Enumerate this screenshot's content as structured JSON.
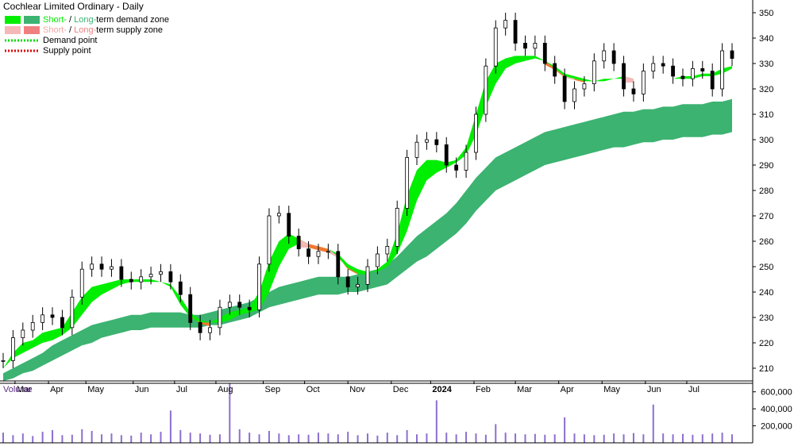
{
  "chart_data": {
    "type": "candlestick",
    "title": "Cochlear Limited Ordinary - Daily",
    "legend": {
      "placement": "top-left",
      "entries": [
        {
          "kind": "zone",
          "parts": [
            {
              "text": "Short-",
              "color": "#00ee00"
            },
            {
              "text": " / ",
              "color": "#000000"
            },
            {
              "text": "Long-",
              "color": "#3cb371"
            },
            {
              "text": "term demand zone",
              "color": "#000000"
            }
          ],
          "swatches": [
            "#00ee00",
            "#3cb371"
          ]
        },
        {
          "kind": "zone",
          "parts": [
            {
              "text": "Short-",
              "color": "#f4a6a6"
            },
            {
              "text": " / ",
              "color": "#000000"
            },
            {
              "text": "Long-",
              "color": "#f08080"
            },
            {
              "text": "term supply zone",
              "color": "#000000"
            }
          ],
          "swatches": [
            "#f4b8b8",
            "#f08080"
          ]
        },
        {
          "kind": "line",
          "parts": [
            {
              "text": "Demand point",
              "color": "#000000"
            }
          ],
          "color": "#00dd00"
        },
        {
          "kind": "line",
          "parts": [
            {
              "text": "Supply point",
              "color": "#000000"
            }
          ],
          "color": "#dd0000"
        }
      ]
    },
    "price_axis": {
      "min": 205,
      "max": 355,
      "ticks": [
        210,
        220,
        230,
        240,
        250,
        260,
        270,
        280,
        290,
        300,
        310,
        320,
        330,
        340,
        350
      ]
    },
    "x_axis": {
      "months": [
        "Mar",
        "Apr",
        "May",
        "Jun",
        "Jul",
        "Aug",
        "Sep",
        "Oct",
        "Nov",
        "Dec",
        "2024",
        "Feb",
        "Mar",
        "Apr",
        "May",
        "Jun",
        "Jul"
      ],
      "month_starts": [
        1.2,
        4.6,
        8.4,
        13.2,
        17.4,
        21.6,
        26.4,
        30.6,
        35,
        39.4,
        43.4,
        47.8,
        52,
        56.4,
        60.8,
        65.2,
        69.4
      ],
      "num_points": 75
    },
    "price_series": [
      {
        "name": "price",
        "values": [
          213,
          222,
          225,
          228,
          231,
          230,
          226,
          238,
          249,
          251,
          249,
          250,
          245,
          244,
          246,
          247,
          248,
          244,
          239,
          228,
          224,
          226,
          234,
          236,
          234,
          233,
          251,
          270,
          271,
          262,
          257,
          254,
          256,
          256,
          246,
          242,
          243,
          250,
          255,
          258,
          273,
          293,
          299,
          300,
          298,
          290,
          288,
          295,
          310,
          329,
          344,
          347,
          338,
          336,
          338,
          330,
          325,
          315,
          320,
          322,
          331,
          335,
          330,
          320,
          318,
          327,
          330,
          329,
          325,
          324,
          328,
          327,
          320,
          335,
          332
        ]
      },
      {
        "name": "short-term-zone-upper",
        "values": [
          210,
          216,
          220,
          221,
          224,
          225,
          226,
          232,
          238,
          242,
          243,
          244,
          245,
          245,
          245,
          245,
          244,
          242,
          235,
          230,
          228,
          228,
          230,
          232,
          233,
          234,
          240,
          252,
          260,
          263,
          261,
          259,
          258,
          257,
          254,
          249,
          247,
          247,
          249,
          252,
          263,
          278,
          288,
          292,
          292,
          291,
          292,
          297,
          310,
          323,
          330,
          332,
          333,
          333,
          333,
          331,
          328,
          325,
          324,
          323,
          323,
          324,
          324,
          325,
          324,
          324,
          324,
          324,
          324,
          325,
          325,
          326,
          326,
          328,
          329
        ]
      },
      {
        "name": "short-term-zone-lower",
        "values": [
          210,
          214,
          216,
          218,
          220,
          221,
          223,
          226,
          231,
          236,
          239,
          241,
          243,
          244,
          244,
          244,
          244,
          243,
          238,
          232,
          229,
          228,
          228,
          229,
          231,
          232,
          233,
          240,
          250,
          257,
          259,
          259,
          258,
          257,
          255,
          251,
          249,
          248,
          248,
          250,
          255,
          264,
          276,
          284,
          287,
          289,
          291,
          294,
          302,
          313,
          322,
          328,
          330,
          331,
          332,
          331,
          329,
          326,
          325,
          324,
          323,
          323,
          324,
          324,
          324,
          324,
          324,
          324,
          324,
          324,
          324,
          325,
          325,
          326,
          328
        ]
      },
      {
        "name": "long-term-zone-upper",
        "values": [
          208,
          210,
          212,
          214,
          216,
          219,
          221,
          223,
          225,
          227,
          228,
          229,
          230,
          231,
          231,
          232,
          232,
          232,
          232,
          231,
          231,
          232,
          233,
          234,
          235,
          236,
          238,
          240,
          242,
          243,
          244,
          245,
          246,
          246,
          246,
          246,
          247,
          248,
          249,
          251,
          254,
          258,
          262,
          265,
          268,
          271,
          275,
          280,
          285,
          289,
          293,
          295,
          297,
          299,
          301,
          303,
          304,
          305,
          306,
          307,
          308,
          309,
          310,
          311,
          311,
          312,
          312,
          313,
          313,
          314,
          314,
          314,
          315,
          315,
          316
        ]
      },
      {
        "name": "long-term-zone-lower",
        "values": [
          205,
          206,
          208,
          209,
          211,
          213,
          215,
          217,
          219,
          220,
          222,
          223,
          224,
          225,
          225,
          226,
          226,
          226,
          226,
          226,
          226,
          227,
          227,
          228,
          229,
          230,
          232,
          234,
          235,
          236,
          237,
          238,
          239,
          239,
          239,
          240,
          240,
          241,
          242,
          243,
          246,
          249,
          252,
          254,
          257,
          260,
          263,
          267,
          272,
          276,
          280,
          282,
          284,
          286,
          288,
          290,
          291,
          292,
          293,
          294,
          295,
          296,
          297,
          297,
          298,
          299,
          299,
          300,
          300,
          301,
          301,
          301,
          302,
          302,
          303
        ]
      }
    ],
    "volume_panel": {
      "title": "Volume",
      "ylim": [
        0,
        700000
      ],
      "ticks": [
        200000,
        400000,
        600000
      ],
      "tick_labels": [
        "200,000",
        "400,000",
        "600,000"
      ],
      "values": [
        120000,
        90000,
        110000,
        80000,
        130000,
        150000,
        90000,
        95000,
        160000,
        140000,
        100000,
        110000,
        90000,
        85000,
        120000,
        100000,
        130000,
        380000,
        150000,
        120000,
        110000,
        95000,
        100000,
        700000,
        160000,
        120000,
        100000,
        140000,
        110000,
        90000,
        100000,
        95000,
        120000,
        110000,
        100000,
        130000,
        90000,
        110000,
        85000,
        120000,
        90000,
        150000,
        100000,
        110000,
        500000,
        120000,
        100000,
        130000,
        110000,
        95000,
        220000,
        120000,
        110000,
        100000,
        105000,
        95000,
        100000,
        300000,
        110000,
        100000,
        90000,
        95000,
        110000,
        100000,
        115000,
        100000,
        450000,
        110000,
        100000,
        105000,
        95000,
        100000,
        110000,
        120000,
        100000
      ]
    },
    "colors": {
      "short_demand": "#00ee00",
      "long_demand": "#3cb371",
      "short_supply": "#f4b8b8",
      "long_supply": "#f08080",
      "supply_zone_fill": "#f07830",
      "volume_bar": "#8c6fd0",
      "candle": "#000000"
    },
    "grid": false
  }
}
